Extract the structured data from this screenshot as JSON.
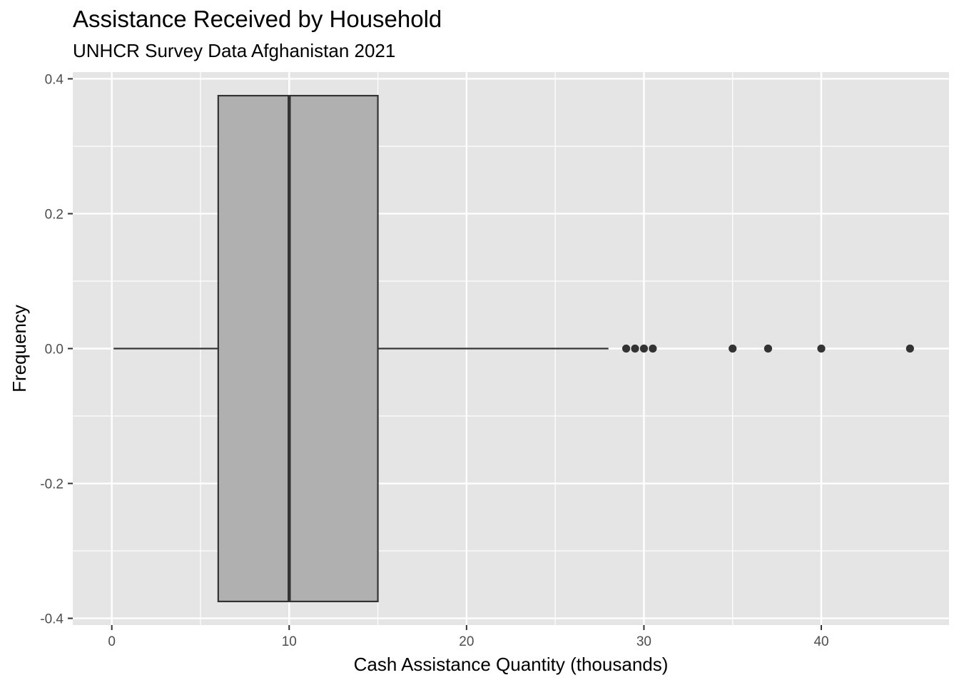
{
  "chart_data": {
    "type": "boxplot",
    "title": "Assistance Received by Household",
    "subtitle": "UNHCR Survey Data Afghanistan 2021",
    "xlabel": "Cash Assistance Quantity (thousands)",
    "ylabel": "Frequency",
    "xlim": [
      -2.2,
      47.2
    ],
    "ylim": [
      -0.41,
      0.41
    ],
    "x_ticks": [
      0,
      10,
      20,
      30,
      40
    ],
    "x_tick_labels": [
      "0",
      "10",
      "20",
      "30",
      "40"
    ],
    "y_ticks": [
      0.4,
      0.2,
      0.0,
      -0.2,
      -0.4
    ],
    "y_tick_labels": [
      "0.4",
      "0.2",
      "0.0",
      "-0.2",
      "-0.4"
    ],
    "grid": true,
    "box": {
      "whisker_low": 0.1,
      "q1": 6,
      "median": 10,
      "q3": 15,
      "whisker_high": 28,
      "box_y_range": [
        -0.375,
        0.375
      ],
      "outliers": [
        29,
        29.5,
        30,
        30.5,
        35,
        37,
        40,
        45
      ]
    },
    "colors": {
      "panel_background": "#e5e5e5",
      "grid": "#ffffff",
      "box_fill": "#b0b0b0",
      "box_outline": "#333333",
      "outlier": "#333333"
    }
  }
}
